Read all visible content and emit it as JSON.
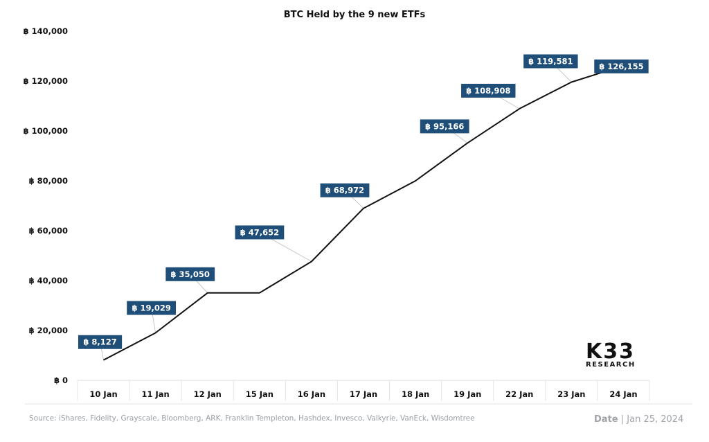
{
  "chart_data": {
    "type": "line",
    "title": "BTC Held by the 9 new ETFs",
    "categories": [
      "10 Jan",
      "11 Jan",
      "12 Jan",
      "15 Jan",
      "16 Jan",
      "17 Jan",
      "18 Jan",
      "19 Jan",
      "22 Jan",
      "23 Jan",
      "24 Jan"
    ],
    "series": [
      {
        "values": [
          8127,
          19029,
          35050,
          35050,
          47652,
          68972,
          80000,
          95166,
          108908,
          119581,
          126155
        ]
      }
    ],
    "data_labels": [
      {
        "index": 0,
        "text": "฿ 8,127"
      },
      {
        "index": 1,
        "text": "฿ 19,029"
      },
      {
        "index": 2,
        "text": "฿ 35,050"
      },
      {
        "index": 4,
        "text": "฿ 47,652"
      },
      {
        "index": 5,
        "text": "฿ 68,972"
      },
      {
        "index": 7,
        "text": "฿ 95,166"
      },
      {
        "index": 8,
        "text": "฿ 108,908"
      },
      {
        "index": 9,
        "text": "฿ 119,581"
      },
      {
        "index": 10,
        "text": "฿ 126,155"
      }
    ],
    "yticks": [
      "฿ 0",
      "฿ 20,000",
      "฿ 40,000",
      "฿ 60,000",
      "฿ 80,000",
      "฿ 100,000",
      "฿ 120,000",
      "฿ 140,000"
    ],
    "ylim": [
      0,
      140000
    ],
    "grid": false,
    "xlabel": "",
    "ylabel": "",
    "colors": {
      "line": "#111111",
      "label_bg": "#1f4e79",
      "label_text": "#ffffff",
      "leader": "#bbbbbb"
    }
  },
  "footer": {
    "source": "Source:  iShares, Fidelity, Grayscale, Bloomberg, ARK, Franklin Templeton, Hashdex, Invesco, Valkyrie, VanEck, Wisdomtree",
    "date_label": "Date",
    "date_value": "Jan 25, 2024"
  },
  "logo": {
    "main": "K33",
    "sub": "RESEARCH"
  }
}
